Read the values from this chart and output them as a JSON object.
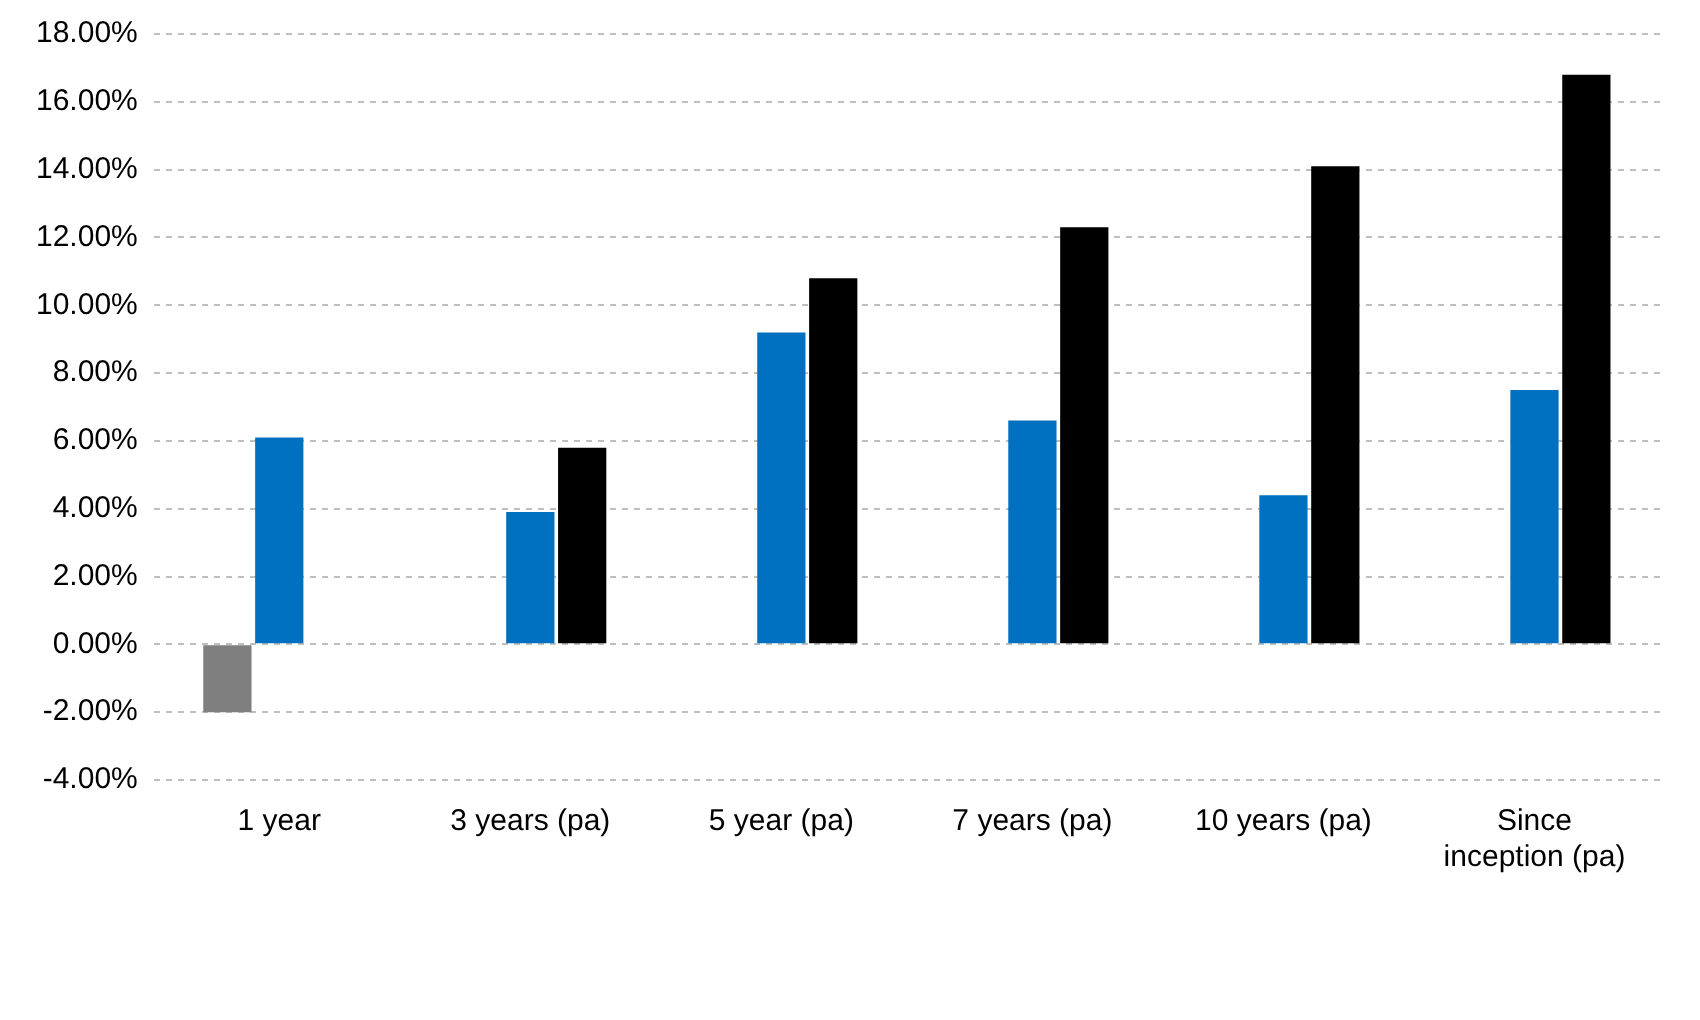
{
  "chart_data": {
    "type": "bar",
    "categories": [
      "1 year",
      "3 years (pa)",
      "5 year (pa)",
      "7 years (pa)",
      "10 years (pa)",
      "Since inception (pa)"
    ],
    "series": [
      {
        "color": "#7f7f7f",
        "values": [
          -2.0,
          null,
          null,
          null,
          null,
          null
        ]
      },
      {
        "color": "#0070c0",
        "values": [
          6.1,
          3.9,
          9.2,
          6.6,
          4.4,
          7.5
        ]
      },
      {
        "color": "#000000",
        "values": [
          null,
          5.8,
          10.8,
          12.3,
          14.1,
          16.8
        ]
      }
    ],
    "ylim": [
      -4,
      18
    ],
    "yticks": [
      {
        "value": -4,
        "label": "-4.00%"
      },
      {
        "value": -2,
        "label": "-2.00%"
      },
      {
        "value": 0,
        "label": "0.00%"
      },
      {
        "value": 2,
        "label": "2.00%"
      },
      {
        "value": 4,
        "label": "4.00%"
      },
      {
        "value": 6,
        "label": "6.00%"
      },
      {
        "value": 8,
        "label": "8.00%"
      },
      {
        "value": 10,
        "label": "10.00%"
      },
      {
        "value": 12,
        "label": "12.00%"
      },
      {
        "value": 14,
        "label": "14.00%"
      },
      {
        "value": 16,
        "label": "16.00%"
      },
      {
        "value": 18,
        "label": "18.00%"
      }
    ],
    "grid": "y"
  }
}
